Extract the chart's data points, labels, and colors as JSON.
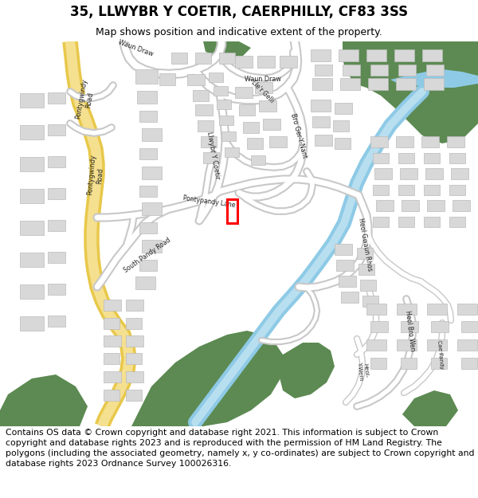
{
  "title": "35, LLWYBR Y COETIR, CAERPHILLY, CF83 3SS",
  "subtitle": "Map shows position and indicative extent of the property.",
  "copyright_text": "Contains OS data © Crown copyright and database right 2021. This information is subject to Crown copyright and database rights 2023 and is reproduced with the permission of HM Land Registry. The polygons (including the associated geometry, namely x, y co-ordinates) are subject to Crown copyright and database rights 2023 Ordnance Survey 100026316.",
  "map_bg": "#f2f2f2",
  "road_fill": "#ffffff",
  "road_outline": "#c8c8c8",
  "yellow_outer": "#e8c84a",
  "yellow_inner": "#f5e090",
  "green_dark": "#5c8a52",
  "green_light": "#6ea060",
  "blue_water": "#8ecae6",
  "blue_water2": "#a8d4e8",
  "building_fill": "#d8d8d8",
  "building_edge": "#bbbbbb",
  "property_red": "#ff0000",
  "title_fs": 12,
  "subtitle_fs": 9,
  "copy_fs": 7.8
}
